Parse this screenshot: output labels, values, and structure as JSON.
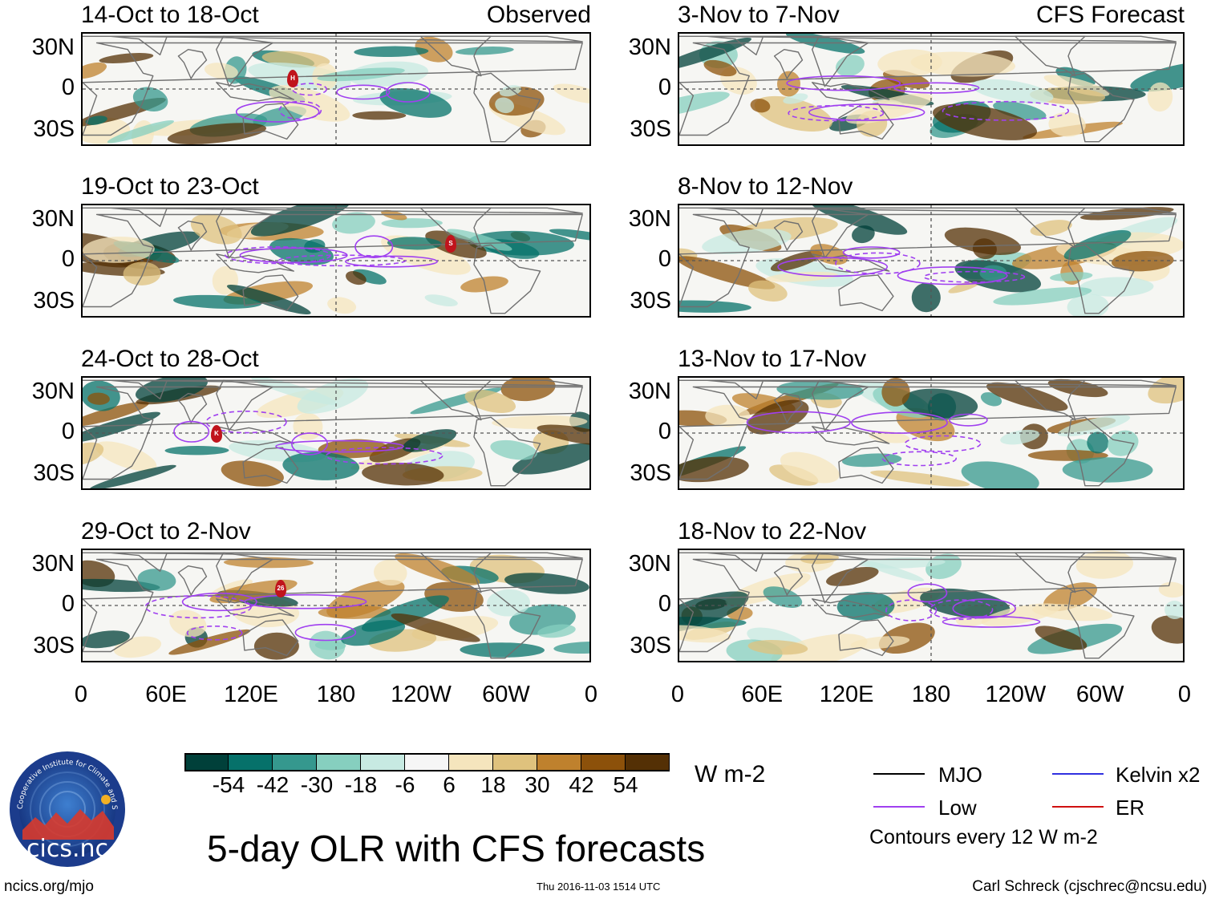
{
  "panels_left": [
    {
      "date": "14-Oct to 18-Oct",
      "tag": "Observed"
    },
    {
      "date": "19-Oct to 23-Oct",
      "tag": ""
    },
    {
      "date": "24-Oct to 28-Oct",
      "tag": ""
    },
    {
      "date": "29-Oct to 2-Nov",
      "tag": ""
    }
  ],
  "panels_right": [
    {
      "date": "3-Nov to 7-Nov",
      "tag": "CFS Forecast"
    },
    {
      "date": "8-Nov to 12-Nov",
      "tag": ""
    },
    {
      "date": "13-Nov to 17-Nov",
      "tag": ""
    },
    {
      "date": "18-Nov to 22-Nov",
      "tag": ""
    }
  ],
  "lat_labels": [
    "30N",
    "0",
    "30S"
  ],
  "lon_labels": [
    "0",
    "60E",
    "120E",
    "180",
    "120W",
    "60W",
    "0"
  ],
  "storm_markers": {
    "p0": "H",
    "p1": "S",
    "p2": "K",
    "p3": "26"
  },
  "colorbar": {
    "colors": [
      "#00403a",
      "#06716a",
      "#35988e",
      "#86cfbf",
      "#c7eae2",
      "#f6f6f6",
      "#f5e5bd",
      "#dfc27d",
      "#bf812d",
      "#8c510a",
      "#543005"
    ],
    "labels": [
      "-54",
      "-42",
      "-30",
      "-18",
      "-6",
      "6",
      "18",
      "30",
      "42",
      "54"
    ],
    "units": "W m-2"
  },
  "legend": {
    "mjo": {
      "label": "MJO",
      "color": "#000000"
    },
    "kelvin": {
      "label": "Kelvin x2",
      "color": "#3030e0"
    },
    "low": {
      "label": "Low",
      "color": "#a040f0"
    },
    "er": {
      "label": "ER",
      "color": "#d01010"
    },
    "note": "Contours every 12 W m-2"
  },
  "logo": {
    "text": "cics.nc",
    "ring_text": "Cooperative Institute for Climate and Satellites"
  },
  "main_title": "5-day OLR with CFS forecasts",
  "footer": {
    "left": "ncics.org/mjo",
    "center": "Thu 2016-11-03 1514 UTC",
    "right": "Carl Schreck (cjschrec@ncsu.edu)"
  }
}
